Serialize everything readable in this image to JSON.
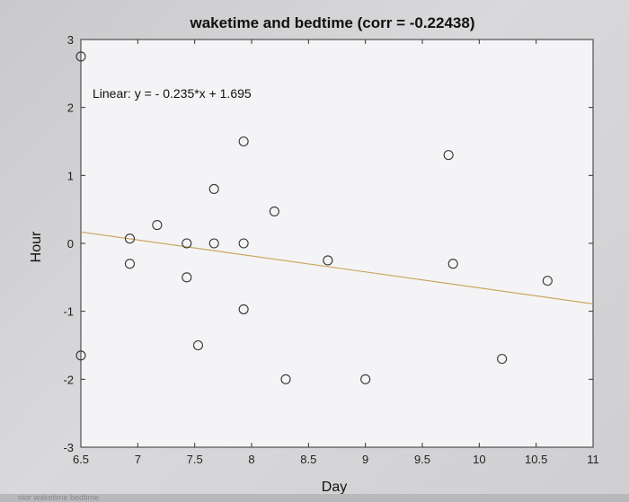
{
  "chart_data": {
    "type": "scatter",
    "title": "waketime and bedtime (corr = -0.22438)",
    "xlabel": "Day",
    "ylabel": "Hour",
    "xlim": [
      6.5,
      11
    ],
    "ylim": [
      -3,
      3
    ],
    "xticks": [
      "6.5",
      "7",
      "7.5",
      "8",
      "8.5",
      "9",
      "9.5",
      "10",
      "10.5",
      "11"
    ],
    "xtick_values": [
      6.5,
      7,
      7.5,
      8,
      8.5,
      9,
      9.5,
      10,
      10.5,
      11
    ],
    "yticks": [
      "3",
      "2",
      "1",
      "0",
      "-1",
      "-2",
      "-3"
    ],
    "ytick_values": [
      3,
      2,
      1,
      0,
      -1,
      -2,
      -3
    ],
    "grid": false,
    "annotation": "Linear:  y = - 0.235*x + 1.695",
    "fit": {
      "slope": -0.235,
      "intercept": 1.695,
      "color": "#c8a860"
    },
    "marker_color": "#333333",
    "series": [
      {
        "x": [
          6.5,
          6.5,
          6.93,
          6.93,
          7.17,
          7.43,
          7.43,
          7.53,
          7.67,
          7.67,
          7.93,
          7.93,
          7.93,
          8.2,
          8.3,
          8.67,
          9.0,
          9.73,
          9.77,
          10.2,
          10.6
        ],
        "y": [
          2.75,
          -1.65,
          0.07,
          -0.3,
          0.27,
          0.0,
          -0.5,
          -1.5,
          0.8,
          0.0,
          1.5,
          0.0,
          -0.97,
          0.47,
          -2.0,
          -0.25,
          -2.0,
          1.3,
          -0.3,
          -1.7,
          -0.55
        ]
      }
    ]
  },
  "footer": {
    "strip_text": "nior waketime    bedtime"
  }
}
